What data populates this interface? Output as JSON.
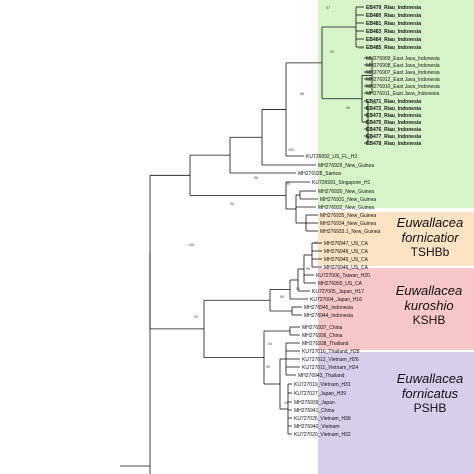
{
  "figure": {
    "colors": {
      "band_green": "#d7f4c9",
      "band_orange": "#fce3c3",
      "band_red": "#f8c7c7",
      "band_purple": "#d9cdec",
      "branch": "#111111"
    },
    "clades": [
      {
        "id": "tshbb",
        "species": "Euwallacea fornicatior",
        "abbr": "TSHBb",
        "color": "#fce3c3"
      },
      {
        "id": "kshb",
        "species": "Euwallacea kuroshio",
        "abbr": "KSHB",
        "color": "#f8c7c7"
      },
      {
        "id": "pshb",
        "species": "Euwallacea fornicatus",
        "abbr": "PSHB",
        "color": "#d9cdec"
      }
    ],
    "supports": [
      "97",
      "100",
      "99",
      "88",
      "53",
      "96",
      "99",
      "100",
      "58",
      "99",
      "95",
      "100",
      "99",
      "99",
      "99",
      "95",
      "93",
      "93",
      "99",
      "94"
    ],
    "leaves": [
      {
        "label": "EB479_Riau_Indonesia",
        "bold": true
      },
      {
        "label": "EB480_Riau_Indonesia",
        "bold": true
      },
      {
        "label": "EB481_Riau_Indonesia",
        "bold": true
      },
      {
        "label": "EB483_Riau_Indonesia",
        "bold": true
      },
      {
        "label": "EB484_Riau_Indonesia",
        "bold": true
      },
      {
        "label": "EB485_Riau_Indonesia",
        "bold": true
      },
      {
        "label": "MH276909_East Java_Indonesia",
        "bold": false
      },
      {
        "label": "MH276908_East Java_Indonesia",
        "bold": false
      },
      {
        "label": "MH276907_East Java_Indonesia",
        "bold": false
      },
      {
        "label": "MH276912_East Java_Indonesia",
        "bold": false
      },
      {
        "label": "MH276910_East Java_Indonesia",
        "bold": false
      },
      {
        "label": "MH276911_East Java_Indonesia",
        "bold": false
      },
      {
        "label": "EB471_Riau_Indonesia",
        "bold": true
      },
      {
        "label": "EB472_Riau_Indonesia",
        "bold": true
      },
      {
        "label": "EB473_Riau_Indonesia",
        "bold": true
      },
      {
        "label": "EB475_Riau_Indonesia",
        "bold": true
      },
      {
        "label": "EB476_Riau_Indonesia",
        "bold": true
      },
      {
        "label": "EB477_Riau_Indonesia",
        "bold": true
      },
      {
        "label": "EB478_Riau_Indonesia",
        "bold": true
      },
      {
        "label": "KU726992_US_FL_H2",
        "bold": false
      },
      {
        "label": "MH276929_New_Guinea",
        "bold": false
      },
      {
        "label": "MH276928_Samoa",
        "bold": false
      },
      {
        "label": "KU726991_Singapore_H1",
        "bold": false
      },
      {
        "label": "MH276930_New_Guinea",
        "bold": false
      },
      {
        "label": "MH276931_New_Guinea",
        "bold": false
      },
      {
        "label": "MH276932_New_Guinea",
        "bold": false
      },
      {
        "label": "MH276935_New_Guinea",
        "bold": false
      },
      {
        "label": "MH276934_New_Guinea",
        "bold": false
      },
      {
        "label": "MH276933.1_New_Guinea",
        "bold": false
      },
      {
        "label": "MH276947_US_CA",
        "bold": false
      },
      {
        "label": "MH276948_US_CA",
        "bold": false
      },
      {
        "label": "MH276949_US_CA",
        "bold": false
      },
      {
        "label": "MH276946_US_CA",
        "bold": false
      },
      {
        "label": "KU727006_Taiwan_H20",
        "bold": false
      },
      {
        "label": "MH276950_US_CA",
        "bold": false
      },
      {
        "label": "KU727005_Japan_H17",
        "bold": false
      },
      {
        "label": "KU727004_Japan_H16",
        "bold": false
      },
      {
        "label": "MH276945_Indonesia",
        "bold": false
      },
      {
        "label": "MH276944_Indonesia",
        "bold": false
      },
      {
        "label": "MH276937_China",
        "bold": false
      },
      {
        "label": "MH276936_China",
        "bold": false
      },
      {
        "label": "MH276938_Thailand",
        "bold": false
      },
      {
        "label": "KU727016_Thailand_H28",
        "bold": false
      },
      {
        "label": "KU727012_Vietnam_H26",
        "bold": false
      },
      {
        "label": "KU727011_Vietnam_H24",
        "bold": false
      },
      {
        "label": "MH276943_Thailand",
        "bold": false
      },
      {
        "label": "KU727019_Vietnam_H31",
        "bold": false
      },
      {
        "label": "KU727027_Japan_H39",
        "bold": false
      },
      {
        "label": "MH276939_Japan",
        "bold": false
      },
      {
        "label": "MH276941_China",
        "bold": false
      },
      {
        "label": "KU727026_Vietnam_H38",
        "bold": false
      },
      {
        "label": "MH276940_Vietnam",
        "bold": false
      },
      {
        "label": "KU727020_Vietnam_H32",
        "bold": false
      }
    ]
  }
}
